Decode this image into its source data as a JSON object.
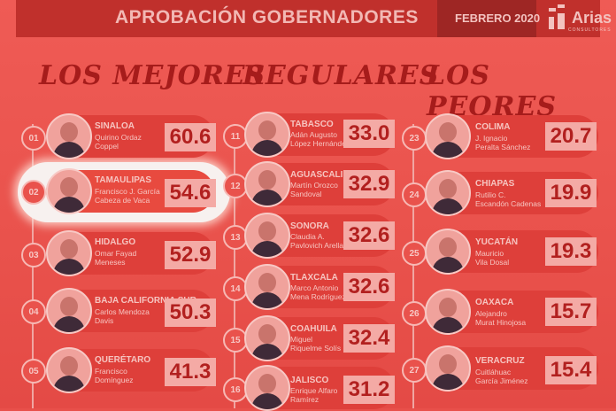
{
  "header": {
    "title": "APROBACIÓN GOBERNADORES",
    "date": "FEBRERO 2020",
    "logo": "Arias",
    "logo_sub": "CONSULTORES"
  },
  "columns": [
    {
      "heading": "LOS MEJORES",
      "items": [
        {
          "rank": "01",
          "state": "SINALOA",
          "name": [
            "Quirino Ordaz",
            "Coppel"
          ],
          "score": "60.6"
        },
        {
          "rank": "02",
          "state": "TAMAULIPAS",
          "name": [
            "Francisco J. García",
            "Cabeza de Vaca"
          ],
          "score": "54.6"
        },
        {
          "rank": "03",
          "state": "HIDALGO",
          "name": [
            "Omar Fayad",
            "Meneses"
          ],
          "score": "52.9"
        },
        {
          "rank": "04",
          "state": "BAJA CALIFORNIA SUR",
          "name": [
            "Carlos Mendoza",
            "Davis"
          ],
          "score": "50.3"
        },
        {
          "rank": "05",
          "state": "QUERÉTARO",
          "name": [
            "Francisco",
            "Domínguez"
          ],
          "score": "41.3"
        }
      ]
    },
    {
      "heading": "REGULARES",
      "items": [
        {
          "rank": "11",
          "state": "TABASCO",
          "name": [
            "Adán Augusto",
            "López Hernández"
          ],
          "score": "33.0"
        },
        {
          "rank": "12",
          "state": "AGUASCALIENTES",
          "name": [
            "Martín Orozco",
            "Sandoval"
          ],
          "score": "32.9"
        },
        {
          "rank": "13",
          "state": "SONORA",
          "name": [
            "Claudia A.",
            "Pavlovich Arellano"
          ],
          "score": "32.6"
        },
        {
          "rank": "14",
          "state": "TLAXCALA",
          "name": [
            "Marco Antonio",
            "Mena Rodríguez"
          ],
          "score": "32.6"
        },
        {
          "rank": "15",
          "state": "COAHUILA",
          "name": [
            "Miguel",
            "Riquelme Solís"
          ],
          "score": "32.4"
        },
        {
          "rank": "16",
          "state": "JALISCO",
          "name": [
            "Enrique Alfaro",
            "Ramírez"
          ],
          "score": "31.2"
        }
      ]
    },
    {
      "heading": "LOS PEORES",
      "items": [
        {
          "rank": "23",
          "state": "COLIMA",
          "name": [
            "J. Ignacio",
            "Peralta Sánchez"
          ],
          "score": "20.7"
        },
        {
          "rank": "24",
          "state": "CHIAPAS",
          "name": [
            "Rutilio C.",
            "Escandón Cadenas"
          ],
          "score": "19.9"
        },
        {
          "rank": "25",
          "state": "YUCATÁN",
          "name": [
            "Mauricio",
            "Vila Dosal"
          ],
          "score": "19.3"
        },
        {
          "rank": "26",
          "state": "OAXACA",
          "name": [
            "Alejandro",
            "Murat Hinojosa"
          ],
          "score": "15.7"
        },
        {
          "rank": "27",
          "state": "VERACRUZ",
          "name": [
            "Cuitláhuac",
            "García Jiménez"
          ],
          "score": "15.4"
        }
      ]
    }
  ]
}
